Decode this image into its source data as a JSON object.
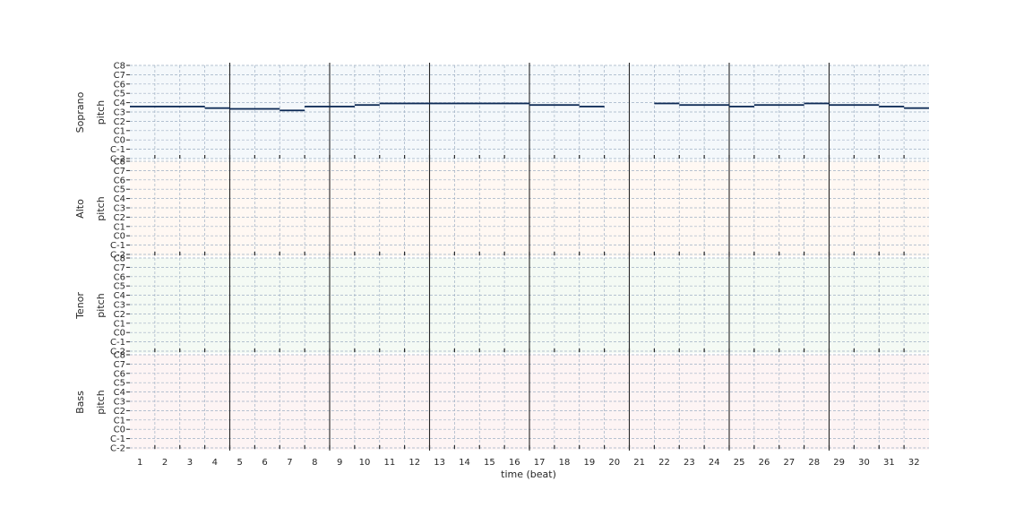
{
  "chart_data": {
    "type": "pianoroll",
    "xlabel": "time (beat)",
    "ylabel": "pitch",
    "x_ticks": [
      "1",
      "2",
      "3",
      "4",
      "5",
      "6",
      "7",
      "8",
      "9",
      "10",
      "11",
      "12",
      "13",
      "14",
      "15",
      "16",
      "17",
      "18",
      "19",
      "20",
      "21",
      "22",
      "23",
      "24",
      "25",
      "26",
      "27",
      "28",
      "29",
      "30",
      "31",
      "32"
    ],
    "y_ticks": [
      "C-2",
      "C-1",
      "C0",
      "C1",
      "C2",
      "C3",
      "C4",
      "C5",
      "C6",
      "C7",
      "C8"
    ],
    "beats": 32,
    "beats_per_bar": 4,
    "grid": true,
    "tracks": [
      {
        "name": "Soprano",
        "color": "#1f77b4",
        "note_color": "#0d2a55",
        "notes": [
          {
            "start": 0.6,
            "end": 3.6,
            "pitch": 67
          },
          {
            "start": 3.6,
            "end": 4.6,
            "pitch": 65
          },
          {
            "start": 4.6,
            "end": 6.6,
            "pitch": 64
          },
          {
            "start": 6.6,
            "end": 7.6,
            "pitch": 62
          },
          {
            "start": 7.6,
            "end": 9.6,
            "pitch": 67
          },
          {
            "start": 9.6,
            "end": 10.6,
            "pitch": 69
          },
          {
            "start": 10.6,
            "end": 16.6,
            "pitch": 71
          },
          {
            "start": 16.6,
            "end": 18.6,
            "pitch": 69
          },
          {
            "start": 18.6,
            "end": 19.6,
            "pitch": 67
          },
          {
            "start": 21.6,
            "end": 22.6,
            "pitch": 71
          },
          {
            "start": 22.6,
            "end": 24.6,
            "pitch": 69
          },
          {
            "start": 24.6,
            "end": 25.6,
            "pitch": 67
          },
          {
            "start": 25.6,
            "end": 27.6,
            "pitch": 69
          },
          {
            "start": 27.6,
            "end": 28.6,
            "pitch": 71
          },
          {
            "start": 28.6,
            "end": 30.6,
            "pitch": 69
          },
          {
            "start": 30.6,
            "end": 31.6,
            "pitch": 67
          },
          {
            "start": 31.6,
            "end": 32.6,
            "pitch": 65
          }
        ]
      },
      {
        "name": "Alto",
        "color": "#ff7f0e",
        "notes": []
      },
      {
        "name": "Tenor",
        "color": "#2ca02c",
        "notes": []
      },
      {
        "name": "Bass",
        "color": "#d62728",
        "notes": []
      }
    ]
  }
}
